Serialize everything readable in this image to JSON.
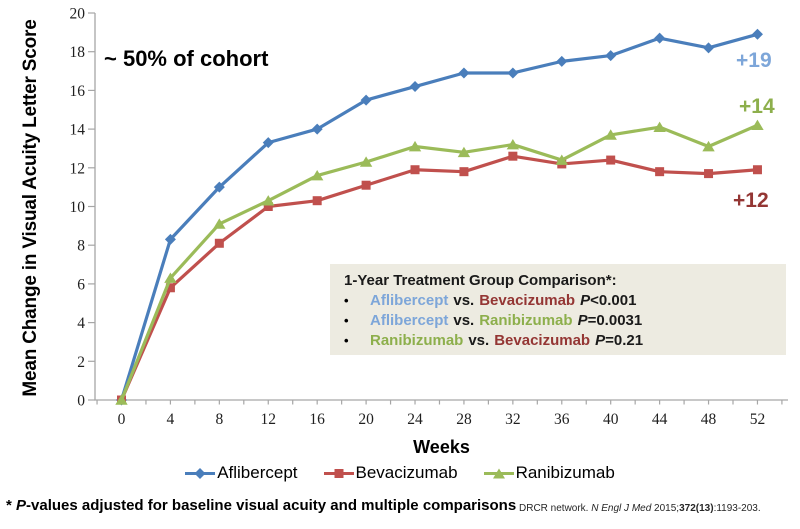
{
  "chart_data": {
    "type": "line",
    "x": [
      0,
      4,
      8,
      12,
      16,
      20,
      24,
      28,
      32,
      36,
      40,
      44,
      48,
      52
    ],
    "xlabel": "Weeks",
    "ylabel": "Mean Change in Visual Acuity Letter Score",
    "ylim": [
      0,
      20
    ],
    "ytick_step": 2,
    "xtick_minor_step": 2,
    "grid": "off",
    "legend_position": "bottom",
    "annotation": "~ 50% of cohort",
    "series": [
      {
        "name": "Aflibercept",
        "marker": "diamond",
        "color": "#4A7EBB",
        "end_label": "+19",
        "end_label_color": "#7DA6D9",
        "values": [
          0,
          8.3,
          11.0,
          13.3,
          14.0,
          15.5,
          16.2,
          16.9,
          16.9,
          17.5,
          17.8,
          18.7,
          18.2,
          18.9
        ]
      },
      {
        "name": "Bevacizumab",
        "marker": "square",
        "color": "#C0504D",
        "end_label": "+12",
        "end_label_color": "#943634",
        "values": [
          0,
          5.8,
          8.1,
          10.0,
          10.3,
          11.1,
          11.9,
          11.8,
          12.6,
          12.2,
          12.4,
          11.8,
          11.7,
          11.9
        ]
      },
      {
        "name": "Ranibizumab",
        "marker": "triangle",
        "color": "#9BBB59",
        "end_label": "+14",
        "end_label_color": "#8DAF4C",
        "values": [
          0,
          6.3,
          9.1,
          10.3,
          11.6,
          12.3,
          13.1,
          12.8,
          13.2,
          12.4,
          13.7,
          14.1,
          13.1,
          14.2
        ]
      }
    ]
  },
  "colors": {
    "aflibercept_line": "#4A7EBB",
    "bevacizumab_line": "#C0504D",
    "ranibizumab_line": "#9BBB59",
    "aflibercept_text": "#7DA6D9",
    "bevacizumab_text": "#943634",
    "ranibizumab_text": "#8DAF4C",
    "axis": "#A6A6A6",
    "box_background": "#EDEBE1"
  },
  "comparison_box": {
    "title": "1-Year Treatment Group Comparison*:",
    "bullet": "•",
    "items": [
      {
        "left": "Aflibercept",
        "vs": "vs.",
        "right": "Bevacizumab",
        "p_label": "P",
        "p_value": "<0.001"
      },
      {
        "left": "Aflibercept",
        "vs": "vs.",
        "right": "Ranibizumab",
        "p_label": "P",
        "p_value": "=0.0031"
      },
      {
        "left": "Ranibizumab",
        "vs": "vs.",
        "right": "Bevacizumab",
        "p_label": "P",
        "p_value": "=0.21"
      }
    ]
  },
  "footnote": {
    "marker": "* ",
    "p_label": "P",
    "text": "-values adjusted for baseline visual acuity and multiple comparisons"
  },
  "citation": {
    "prefix": "DRCR network. ",
    "journal": "N Engl J Med",
    "middle": " 2015;",
    "volume": "372(13)",
    "suffix": ":1193-203."
  }
}
